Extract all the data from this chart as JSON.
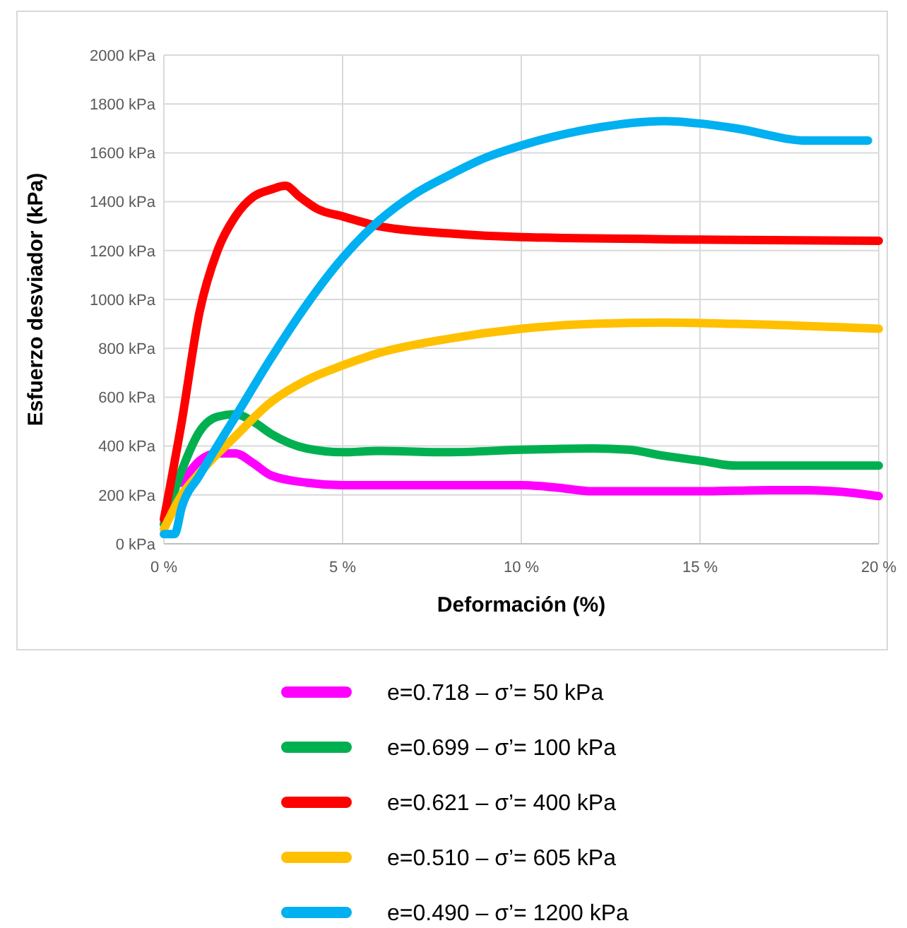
{
  "chart_data": {
    "type": "line",
    "xlabel": "Deformación (%)",
    "ylabel": "Esfuerzo desviador (kPa)",
    "xlim": [
      0,
      20
    ],
    "ylim": [
      0,
      2000
    ],
    "xticks": [
      {
        "value": 0,
        "label": "0 %"
      },
      {
        "value": 5,
        "label": "5 %"
      },
      {
        "value": 10,
        "label": "10 %"
      },
      {
        "value": 15,
        "label": "15 %"
      },
      {
        "value": 20,
        "label": "20 %"
      }
    ],
    "yticks": [
      {
        "value": 0,
        "label": "0 kPa"
      },
      {
        "value": 200,
        "label": "200 kPa"
      },
      {
        "value": 400,
        "label": "400 kPa"
      },
      {
        "value": 600,
        "label": "600 kPa"
      },
      {
        "value": 800,
        "label": "800 kPa"
      },
      {
        "value": 1000,
        "label": "1000 kPa"
      },
      {
        "value": 1200,
        "label": "1200 kPa"
      },
      {
        "value": 1400,
        "label": "1400 kPa"
      },
      {
        "value": 1600,
        "label": "1600 kPa"
      },
      {
        "value": 1800,
        "label": "1800 kPa"
      },
      {
        "value": 2000,
        "label": "2000 kPa"
      }
    ],
    "grid": true,
    "legend": "bottom",
    "marker": "none",
    "line_style": "solid",
    "series": [
      {
        "name": "e=0.718 – σ’= 50 kPa",
        "color": "#ff00ff",
        "x": [
          0.5,
          1,
          1.5,
          2,
          2.5,
          3,
          4,
          5,
          8,
          10,
          11,
          12,
          15,
          17,
          18,
          20
        ],
        "values": [
          250,
          340,
          370,
          370,
          330,
          280,
          250,
          240,
          240,
          240,
          230,
          215,
          215,
          220,
          220,
          195
        ]
      },
      {
        "name": "e=0.699 – σ’= 100 kPa",
        "color": "#00b050",
        "x": [
          0,
          0.5,
          1,
          1.5,
          2,
          2.5,
          3,
          4,
          5,
          6,
          8,
          10,
          12,
          13,
          14,
          15,
          16,
          17,
          20
        ],
        "values": [
          80,
          300,
          460,
          520,
          530,
          500,
          450,
          390,
          375,
          380,
          375,
          385,
          390,
          385,
          360,
          340,
          320,
          320,
          320
        ]
      },
      {
        "name": "e=0.621 – σ’= 400 kPa",
        "color": "#ff0000",
        "x": [
          0,
          0.5,
          1,
          1.5,
          2,
          2.5,
          3,
          3.4,
          3.8,
          4.3,
          5,
          6,
          8,
          10,
          15,
          20
        ],
        "values": [
          100,
          500,
          950,
          1200,
          1340,
          1420,
          1450,
          1465,
          1420,
          1370,
          1340,
          1300,
          1270,
          1255,
          1245,
          1240
        ]
      },
      {
        "name": "e=0.510 – σ’= 605 kPa",
        "color": "#ffc000",
        "x": [
          0,
          0.5,
          1,
          2,
          3,
          4,
          5,
          6,
          8,
          10,
          12,
          14,
          16,
          20
        ],
        "values": [
          60,
          200,
          290,
          440,
          580,
          670,
          730,
          780,
          840,
          880,
          900,
          905,
          900,
          880
        ]
      },
      {
        "name": "e=0.490 – σ’= 1200 kPa",
        "color": "#00b0f0",
        "x": [
          0,
          0.3,
          0.5,
          1,
          2,
          3,
          4,
          5,
          6,
          7,
          8,
          9,
          10,
          12,
          14,
          15,
          16,
          18,
          19.7
        ],
        "values": [
          40,
          40,
          150,
          280,
          520,
          760,
          980,
          1170,
          1320,
          1430,
          1510,
          1580,
          1630,
          1700,
          1730,
          1720,
          1700,
          1650,
          1650
        ]
      }
    ]
  }
}
